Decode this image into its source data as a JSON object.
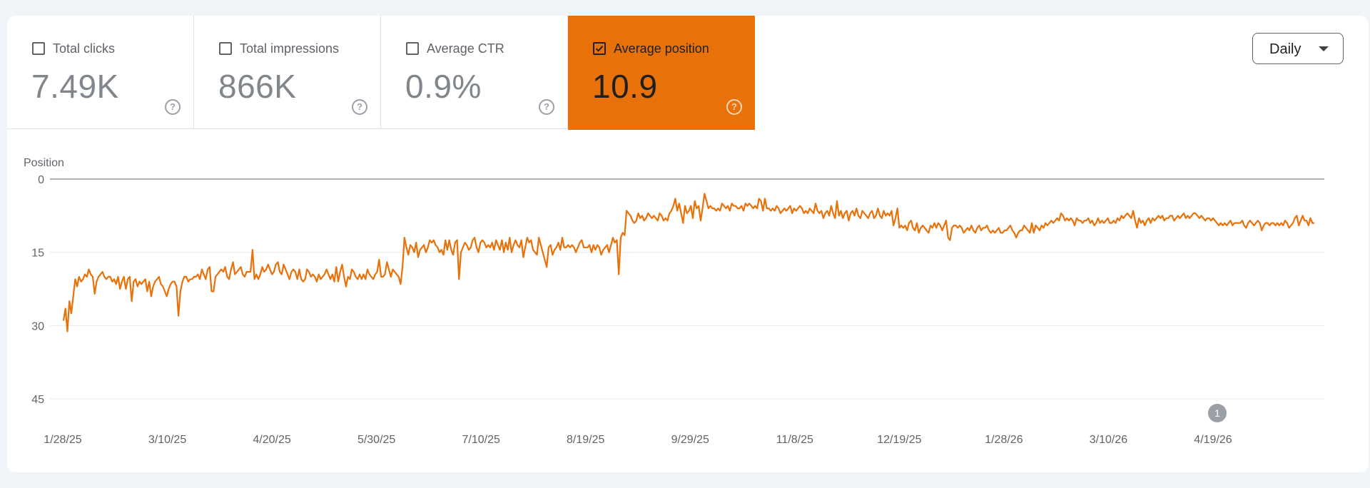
{
  "metrics": [
    {
      "label": "Total clicks",
      "value": "7.49K",
      "checked": false
    },
    {
      "label": "Total impressions",
      "value": "866K",
      "checked": false
    },
    {
      "label": "Average CTR",
      "value": "0.9%",
      "checked": false
    },
    {
      "label": "Average position",
      "value": "10.9",
      "checked": true
    }
  ],
  "help_glyph": "?",
  "period_select": {
    "value": "Daily"
  },
  "colors": {
    "accent": "#e8710a",
    "line": "#e8710a",
    "grid": "#e8eaed",
    "axis": "#5f6368"
  },
  "chart_data": {
    "type": "line",
    "ylabel": "Position",
    "y_reversed": true,
    "ylim": [
      0,
      45
    ],
    "yticks": [
      0,
      15,
      30,
      45
    ],
    "x_start": "1/28/25",
    "x_end": "5/18/26",
    "xticks": [
      "1/28/25",
      "3/10/25",
      "4/20/25",
      "5/30/25",
      "7/10/25",
      "8/19/25",
      "9/29/25",
      "11/8/25",
      "12/19/25",
      "1/28/26",
      "3/10/26",
      "4/19/26"
    ],
    "annotation": {
      "label": "1",
      "date": "4/19/26"
    },
    "series": [
      {
        "values": [
          29.0,
          26.5,
          31.2,
          25.0,
          27.5,
          24.0,
          20.5,
          22.0,
          20.0,
          21.0,
          20.5,
          19.5,
          20.0,
          18.5,
          19.5,
          20.0,
          23.5,
          21.0,
          20.0,
          19.5,
          19.0,
          20.0,
          20.5,
          20.0,
          20.0,
          21.0,
          20.5,
          21.5,
          20.0,
          22.5,
          21.0,
          20.0,
          22.5,
          20.5,
          20.0,
          25.0,
          21.0,
          20.5,
          22.0,
          21.0,
          21.5,
          21.0,
          20.5,
          23.0,
          21.0,
          24.0,
          22.0,
          21.0,
          20.5,
          20.0,
          21.5,
          22.0,
          23.0,
          24.0,
          22.5,
          21.5,
          21.0,
          21.0,
          22.0,
          28.0,
          23.0,
          21.0,
          20.0,
          20.0,
          21.0,
          20.5,
          20.5,
          20.0,
          20.0,
          19.5,
          20.5,
          18.5,
          19.5,
          20.5,
          18.5,
          18.0,
          23.0,
          23.0,
          20.0,
          19.5,
          19.0,
          18.5,
          19.0,
          18.0,
          20.0,
          20.5,
          18.5,
          17.0,
          19.5,
          19.0,
          18.5,
          18.0,
          19.5,
          20.0,
          19.0,
          19.0,
          19.0,
          14.5,
          20.5,
          19.5,
          20.5,
          19.5,
          18.0,
          19.0,
          18.5,
          17.5,
          18.5,
          19.5,
          19.0,
          17.5,
          17.0,
          19.0,
          19.5,
          17.5,
          18.5,
          19.5,
          20.5,
          19.0,
          18.5,
          19.0,
          20.5,
          18.5,
          20.5,
          21.0,
          20.5,
          18.5,
          19.0,
          20.0,
          19.5,
          20.0,
          21.0,
          19.5,
          20.5,
          20.0,
          19.5,
          18.5,
          19.5,
          20.5,
          19.5,
          21.0,
          18.0,
          21.0,
          19.0,
          17.5,
          20.0,
          22.0,
          20.0,
          20.5,
          18.5,
          19.0,
          20.0,
          20.5,
          19.5,
          20.5,
          19.5,
          20.5,
          18.5,
          19.5,
          20.0,
          20.5,
          19.5,
          19.0,
          16.5,
          20.0,
          20.0,
          19.5,
          17.0,
          18.5,
          20.0,
          18.5,
          19.0,
          19.5,
          20.0,
          21.5,
          18.0,
          12.0,
          14.0,
          15.5,
          13.5,
          14.0,
          15.0,
          13.0,
          16.0,
          14.5,
          14.0,
          13.5,
          15.0,
          14.0,
          12.5,
          13.0,
          12.5,
          13.5,
          14.0,
          15.0,
          14.5,
          15.5,
          12.5,
          14.5,
          12.5,
          14.5,
          15.5,
          13.0,
          12.5,
          20.5,
          15.0,
          14.0,
          13.0,
          13.5,
          14.5,
          14.0,
          12.5,
          12.0,
          14.0,
          15.0,
          13.0,
          12.5,
          13.0,
          14.0,
          13.5,
          14.0,
          13.0,
          14.5,
          12.5,
          13.5,
          14.5,
          12.5,
          15.0,
          13.0,
          14.5,
          12.0,
          15.0,
          13.5,
          12.5,
          13.5,
          14.0,
          12.5,
          16.0,
          14.0,
          12.0,
          13.0,
          12.5,
          14.5,
          15.0,
          15.5,
          12.0,
          13.5,
          15.0,
          16.5,
          18.0,
          14.0,
          13.5,
          15.5,
          14.5,
          14.0,
          13.0,
          14.5,
          12.0,
          14.0,
          14.0,
          13.5,
          14.0,
          13.5,
          14.0,
          15.0,
          14.0,
          13.0,
          12.5,
          14.0,
          14.0,
          14.0,
          13.5,
          15.0,
          13.5,
          14.5,
          13.5,
          14.0,
          15.5,
          14.5,
          14.0,
          13.5,
          15.0,
          13.5,
          12.0,
          13.0,
          12.5,
          19.5,
          12.0,
          11.0,
          11.5,
          6.5,
          7.0,
          7.5,
          8.5,
          9.0,
          8.5,
          7.0,
          8.0,
          7.5,
          8.5,
          8.0,
          7.0,
          7.5,
          8.0,
          7.5,
          8.0,
          8.5,
          7.0,
          7.5,
          8.5,
          8.0,
          8.5,
          7.0,
          6.5,
          5.5,
          4.0,
          6.5,
          5.0,
          7.0,
          9.0,
          5.5,
          7.0,
          6.5,
          5.5,
          8.0,
          4.5,
          6.0,
          5.5,
          8.5,
          6.0,
          3.0,
          4.5,
          6.0,
          5.5,
          6.0,
          6.0,
          6.5,
          6.0,
          6.5,
          5.0,
          5.5,
          6.0,
          5.5,
          6.5,
          5.0,
          5.5,
          5.5,
          6.0,
          6.0,
          5.5,
          6.5,
          5.0,
          5.5,
          5.0,
          5.5,
          6.0,
          5.5,
          6.0,
          4.0,
          4.5,
          6.5,
          4.0,
          6.0,
          6.0,
          6.5,
          6.0,
          6.5,
          5.5,
          6.0,
          7.0,
          6.5,
          6.0,
          6.5,
          6.0,
          5.5,
          7.0,
          6.0,
          6.5,
          6.0,
          5.5,
          6.0,
          7.0,
          6.5,
          7.0,
          6.0,
          6.5,
          7.0,
          5.0,
          6.5,
          7.0,
          6.5,
          8.0,
          7.0,
          6.5,
          7.5,
          5.5,
          7.0,
          8.0,
          4.5,
          7.5,
          6.5,
          8.0,
          7.0,
          6.5,
          8.5,
          7.0,
          6.5,
          7.5,
          6.0,
          7.5,
          8.0,
          6.5,
          7.0,
          7.5,
          8.0,
          7.0,
          6.5,
          8.0,
          7.5,
          6.0,
          7.5,
          8.0,
          6.5,
          7.5,
          7.0,
          7.5,
          6.5,
          9.5,
          8.0,
          6.0,
          10.0,
          9.5,
          10.0,
          9.5,
          10.5,
          9.0,
          8.5,
          10.0,
          10.5,
          9.0,
          11.0,
          10.0,
          9.5,
          10.0,
          10.5,
          11.0,
          9.5,
          10.0,
          9.0,
          10.0,
          9.0,
          9.5,
          10.5,
          9.5,
          8.5,
          12.0,
          12.5,
          10.0,
          9.5,
          9.5,
          10.0,
          9.5,
          10.0,
          11.0,
          10.5,
          10.0,
          10.5,
          9.5,
          10.5,
          11.0,
          10.0,
          9.5,
          10.5,
          10.0,
          10.0,
          9.5,
          10.5,
          11.0,
          10.5,
          11.0,
          10.5,
          10.0,
          11.0,
          11.0,
          10.5,
          10.5,
          10.0,
          9.5,
          10.5,
          11.0,
          12.0,
          11.0,
          10.5,
          10.5,
          9.5,
          10.0,
          10.5,
          11.0,
          9.0,
          11.0,
          9.5,
          10.0,
          10.5,
          9.5,
          10.0,
          9.0,
          9.5,
          9.0,
          8.5,
          9.0,
          8.5,
          8.0,
          8.5,
          7.0,
          7.5,
          8.5,
          8.0,
          8.5,
          8.0,
          8.5,
          9.5,
          8.0,
          8.5,
          8.5,
          9.0,
          8.5,
          8.5,
          8.0,
          9.0,
          8.5,
          9.5,
          9.0,
          8.0,
          9.0,
          8.5,
          9.0,
          8.5,
          8.0,
          9.0,
          9.0,
          8.5,
          9.0,
          8.0,
          8.5,
          7.5,
          8.0,
          7.5,
          7.0,
          7.5,
          8.0,
          6.5,
          8.5,
          10.0,
          8.0,
          9.0,
          8.5,
          9.5,
          8.5,
          8.0,
          9.0,
          8.0,
          8.5,
          8.0,
          7.5,
          8.0,
          7.5,
          8.5,
          8.0,
          8.0,
          7.5,
          7.5,
          8.5,
          8.0,
          7.5,
          8.0,
          7.5,
          7.0,
          8.0,
          7.5,
          8.0,
          7.5,
          7.0,
          7.0,
          7.5,
          8.0,
          7.5,
          8.0,
          8.5,
          8.0,
          8.0,
          8.5,
          8.0,
          8.5,
          9.0,
          9.5,
          9.0,
          9.5,
          9.0,
          9.5,
          9.0,
          8.5,
          9.5,
          9.0,
          9.0,
          9.0,
          9.0,
          8.5,
          9.5,
          10.0,
          9.0,
          8.5,
          9.0,
          9.5,
          9.0,
          8.5,
          9.0,
          10.5,
          9.5,
          9.0,
          9.0,
          9.5,
          9.0,
          9.0,
          9.5,
          9.0,
          9.5,
          9.0,
          9.5,
          8.5,
          9.0,
          10.0,
          9.5,
          9.0,
          8.0,
          7.5,
          9.5,
          8.5,
          7.5,
          8.5,
          8.5,
          9.5,
          8.0,
          9.0,
          9.0
        ]
      }
    ]
  }
}
